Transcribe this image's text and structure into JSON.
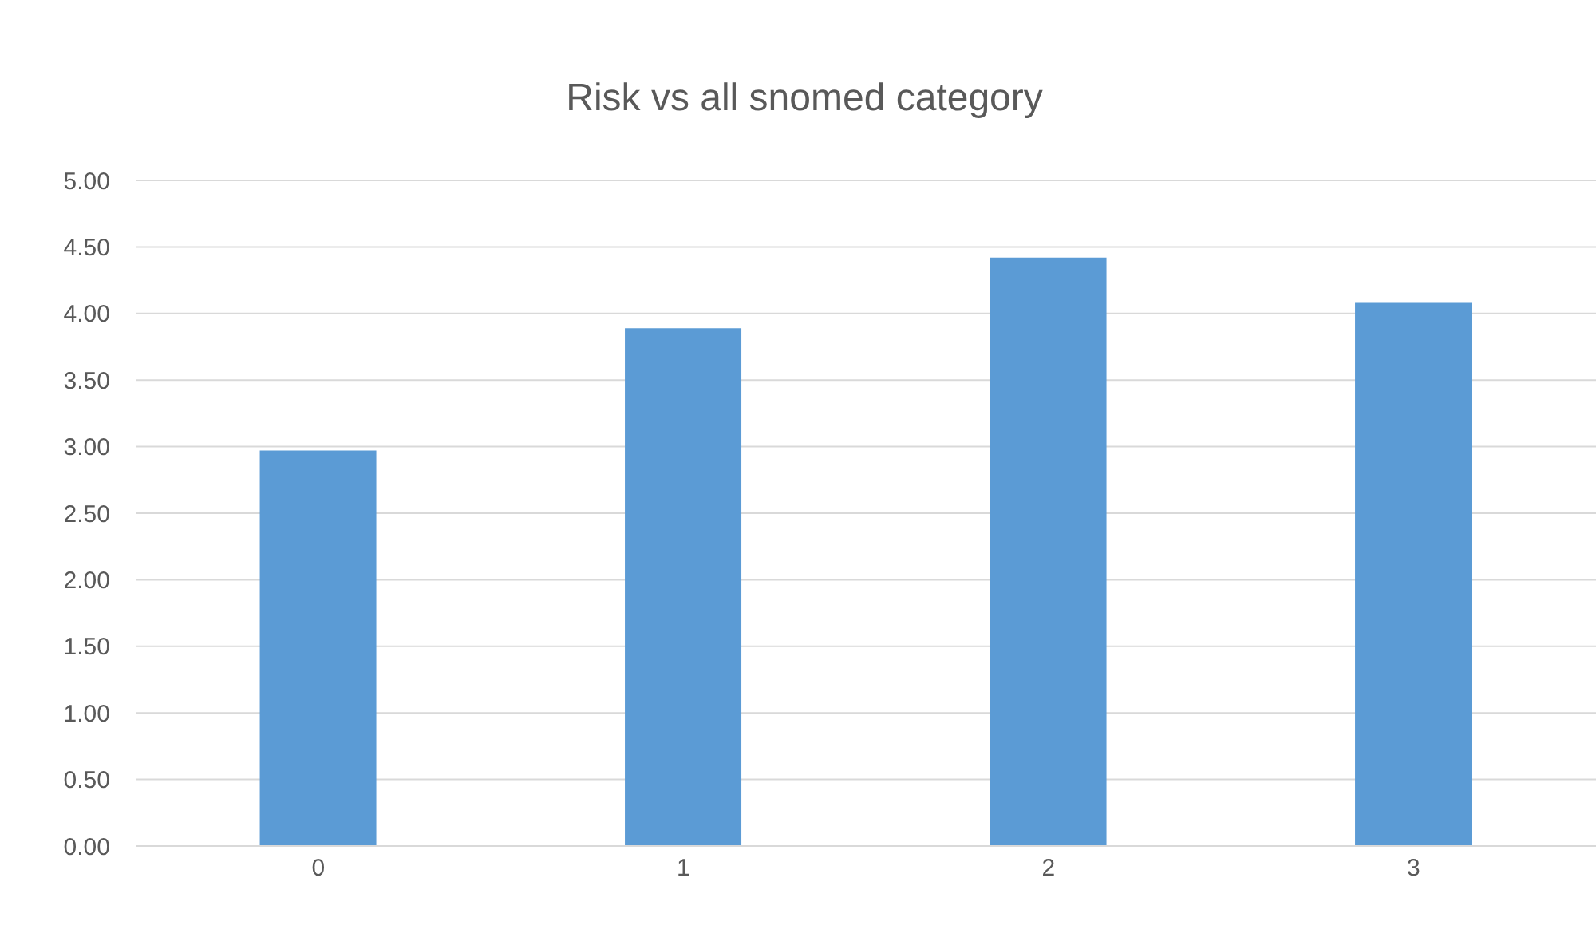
{
  "chart_data": {
    "type": "bar",
    "title": "Risk vs all snomed category",
    "categories": [
      "0",
      "1",
      "2",
      "3"
    ],
    "values": [
      2.97,
      3.89,
      4.42,
      4.08
    ],
    "color": "#5b9bd5",
    "ylim": [
      0,
      5
    ],
    "yticks": [
      {
        "value": 0,
        "label": "0.00"
      },
      {
        "value": 0.5,
        "label": "0.50"
      },
      {
        "value": 1,
        "label": "1.00"
      },
      {
        "value": 1.5,
        "label": "1.50"
      },
      {
        "value": 2,
        "label": "2.00"
      },
      {
        "value": 2.5,
        "label": "2.50"
      },
      {
        "value": 3,
        "label": "3.00"
      },
      {
        "value": 3.5,
        "label": "3.50"
      },
      {
        "value": 4,
        "label": "4.00"
      },
      {
        "value": 4.5,
        "label": "4.50"
      },
      {
        "value": 5,
        "label": "5.00"
      }
    ],
    "grid": "y"
  }
}
